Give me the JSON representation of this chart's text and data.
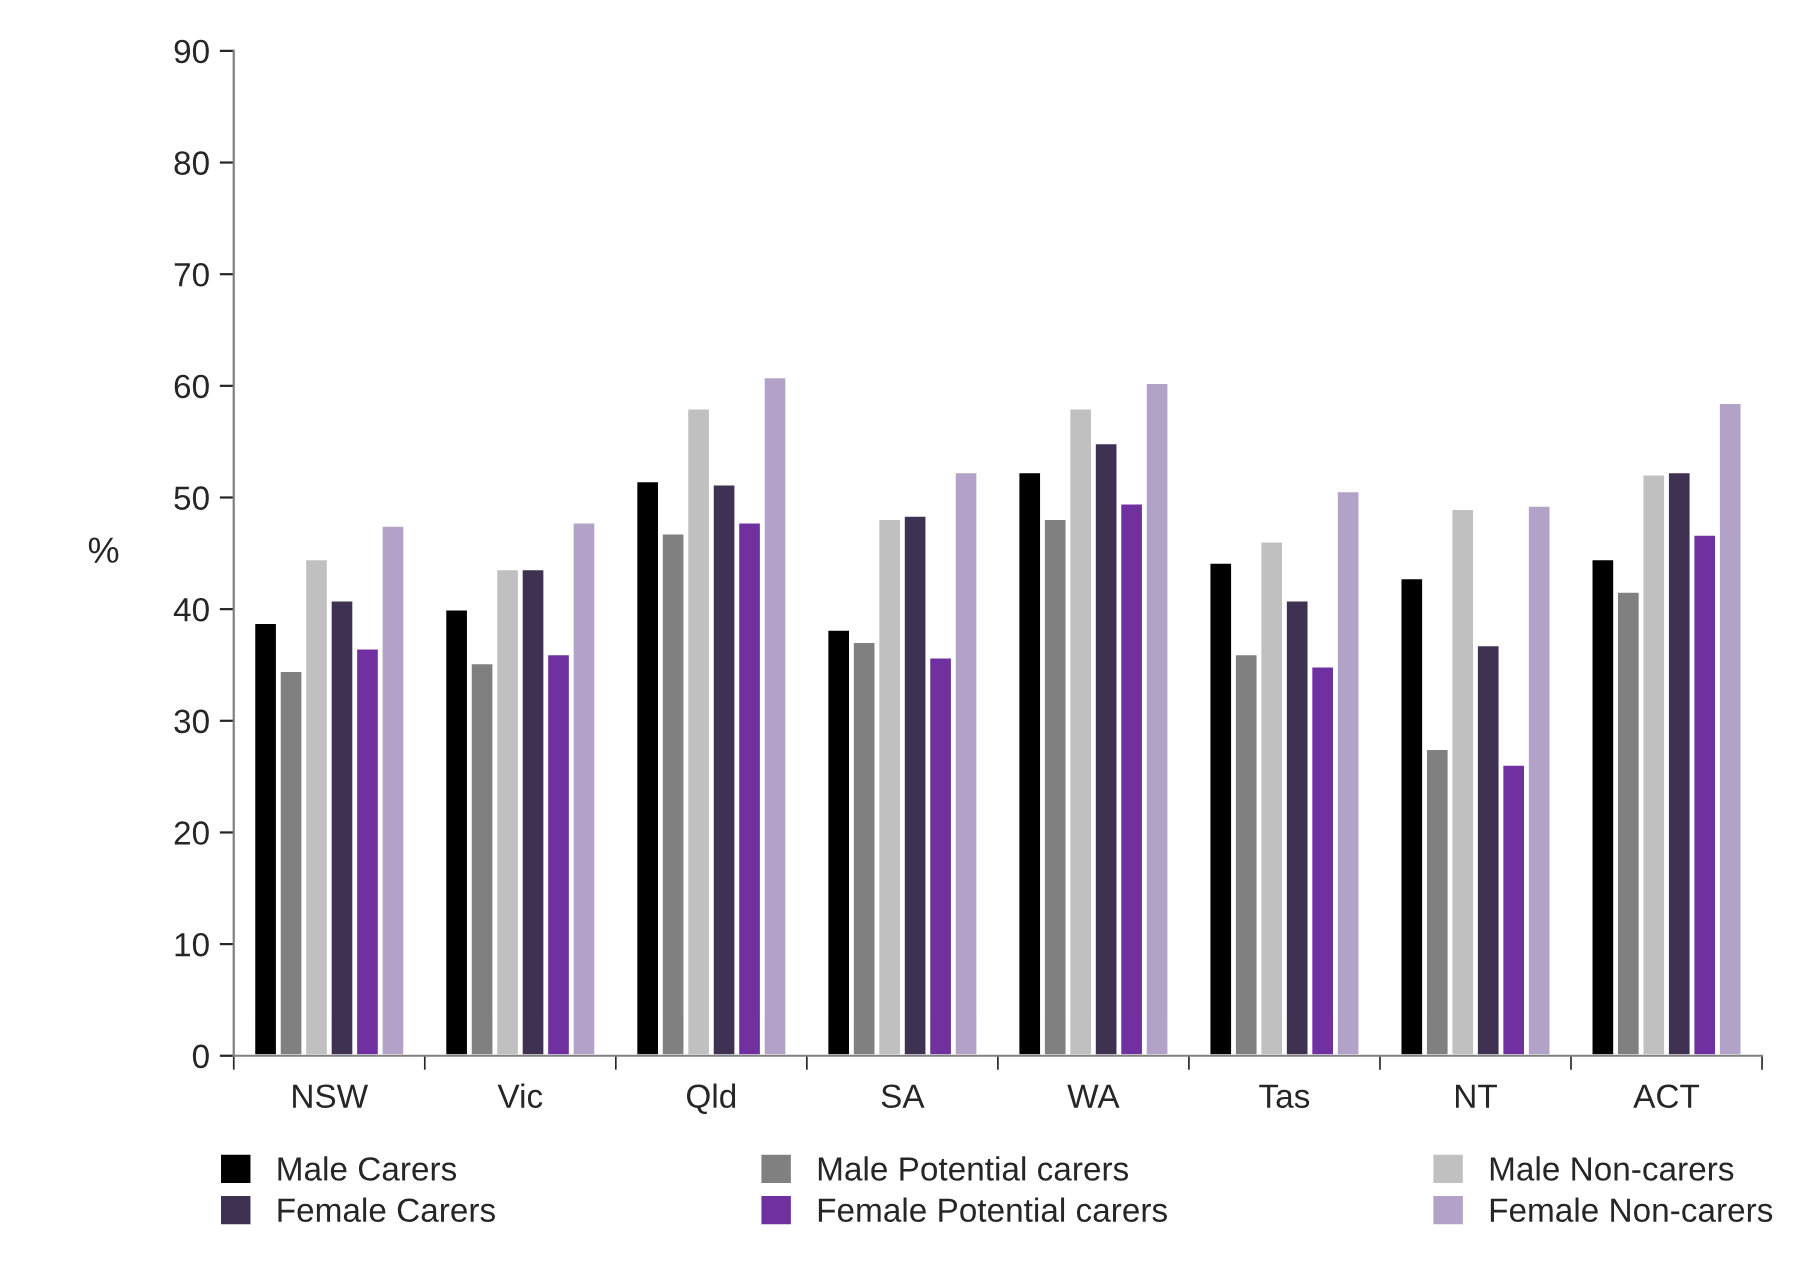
{
  "chart_data": {
    "type": "bar",
    "ylabel": "%",
    "categories": [
      "NSW",
      "Vic",
      "Qld",
      "SA",
      "WA",
      "Tas",
      "NT",
      "ACT"
    ],
    "series": [
      {
        "name": "Male Carers",
        "color": "#000000",
        "values": [
          38.8,
          40.0,
          51.5,
          38.2,
          52.3,
          44.2,
          42.8,
          44.5
        ]
      },
      {
        "name": "Male Potential carers",
        "color": "#808080",
        "values": [
          34.5,
          35.2,
          46.8,
          37.1,
          48.1,
          36.0,
          27.5,
          41.6
        ]
      },
      {
        "name": "Male Non-carers",
        "color": "#c0c0c0",
        "values": [
          44.5,
          43.6,
          58.0,
          48.1,
          58.0,
          46.1,
          49.0,
          52.1
        ]
      },
      {
        "name": "Female Carers",
        "color": "#3f3151",
        "values": [
          40.8,
          43.6,
          51.2,
          48.4,
          54.9,
          40.8,
          36.8,
          52.3
        ]
      },
      {
        "name": "Female Potential carers",
        "color": "#7030a0",
        "values": [
          36.5,
          36.0,
          47.8,
          35.7,
          49.5,
          34.9,
          26.1,
          46.7
        ]
      },
      {
        "name": "Female Non-carers",
        "color": "#b3a2c7",
        "values": [
          47.5,
          47.8,
          60.8,
          52.3,
          60.3,
          50.6,
          49.3,
          58.5
        ]
      }
    ],
    "ylim": [
      0,
      90
    ],
    "yticks": [
      0,
      10,
      20,
      30,
      40,
      50,
      60,
      70,
      80,
      90
    ],
    "grid": false,
    "legend": "bottom"
  }
}
